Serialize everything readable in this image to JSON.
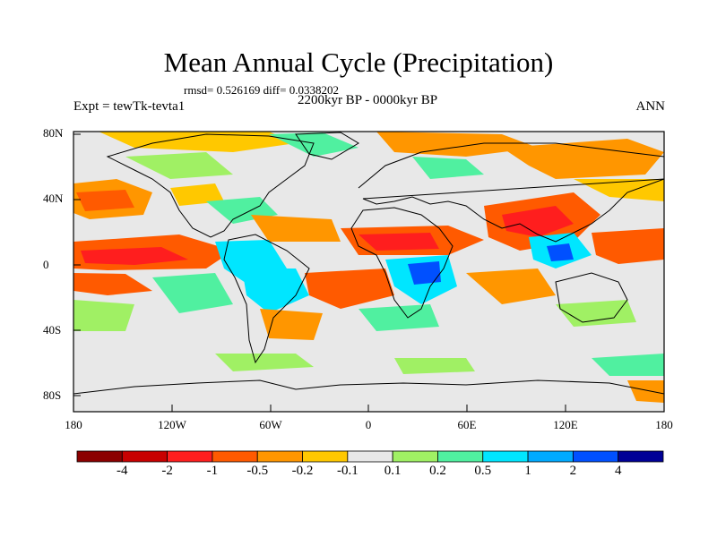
{
  "title": "Mean Annual Cycle (Precipitation)",
  "stats_line": "rmsd= 0.526169  diff= 0.0338202",
  "period": "2200kyr BP - 0000kyr BP",
  "experiment": "Expt = tewTk-tevta1",
  "season": "ANN",
  "lat_ticks": [
    "80N",
    "40N",
    "0",
    "40S",
    "80S"
  ],
  "lon_ticks": [
    "180",
    "120W",
    "60W",
    "0",
    "60E",
    "120E",
    "180"
  ],
  "colorbar": {
    "labels": [
      "-4",
      "-2",
      "-1",
      "-0.5",
      "-0.2",
      "-0.1",
      "0.1",
      "0.2",
      "0.5",
      "1",
      "2",
      "4"
    ],
    "colors": [
      "#8b0000",
      "#c80000",
      "#ff1e1e",
      "#ff5a00",
      "#ff9600",
      "#ffc800",
      "#e8e8e8",
      "#a0f064",
      "#50f0a0",
      "#00e6ff",
      "#00aaff",
      "#0050ff",
      "#000096"
    ]
  },
  "colors": {
    "background": "#e8e8e8",
    "coast": "#000000"
  }
}
